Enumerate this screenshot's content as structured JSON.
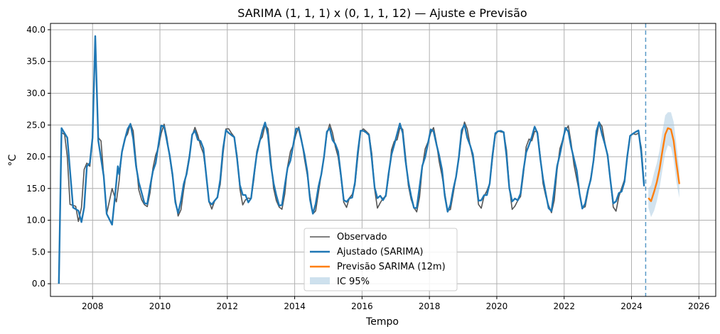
{
  "chart_data": {
    "type": "line",
    "title": "SARIMA (1, 1, 1) x (0, 1, 1, 12) — Ajuste e Previsão",
    "xlabel": "Tempo",
    "ylabel": "°C",
    "xlim": [
      2006.75,
      2026.5
    ],
    "ylim": [
      -2.0,
      41.0
    ],
    "x_ticks": [
      2008,
      2010,
      2012,
      2014,
      2016,
      2018,
      2020,
      2022,
      2024,
      2026
    ],
    "x_tick_labels": [
      "2008",
      "2010",
      "2012",
      "2014",
      "2016",
      "2018",
      "2020",
      "2022",
      "2024",
      "2026"
    ],
    "y_ticks": [
      0,
      5,
      10,
      15,
      20,
      25,
      30,
      35,
      40
    ],
    "y_tick_labels": [
      "0.0",
      "5.0",
      "10.0",
      "15.0",
      "20.0",
      "25.0",
      "30.0",
      "35.0",
      "40.0"
    ],
    "grid": true,
    "legend": "lower-center",
    "forecast_start": 2024.42,
    "history_start": 2007.08,
    "history_end": 2024.42,
    "monthly_pattern_observed": [
      24.0,
      24.3,
      23.0,
      20.0,
      16.0,
      13.0,
      12.0,
      12.5,
      14.0,
      17.0,
      20.5,
      23.0
    ],
    "monthly_pattern_fitted": [
      24.2,
      24.0,
      22.8,
      20.0,
      16.5,
      13.5,
      12.5,
      12.8,
      14.5,
      17.2,
      20.2,
      23.0
    ],
    "observed_special": [
      {
        "x": 2007.08,
        "y": 23.8
      },
      {
        "x": 2007.17,
        "y": 23.5
      },
      {
        "x": 2007.25,
        "y": 20.0
      },
      {
        "x": 2007.33,
        "y": 12.5
      },
      {
        "x": 2007.5,
        "y": 12.2
      },
      {
        "x": 2007.58,
        "y": 9.8
      },
      {
        "x": 2007.67,
        "y": 12.0
      },
      {
        "x": 2007.75,
        "y": 18.0
      },
      {
        "x": 2007.83,
        "y": 19.0
      },
      {
        "x": 2007.92,
        "y": 18.5
      },
      {
        "x": 2008.0,
        "y": 23.0
      },
      {
        "x": 2008.08,
        "y": 38.0
      },
      {
        "x": 2008.17,
        "y": 23.0
      },
      {
        "x": 2008.25,
        "y": 22.5
      },
      {
        "x": 2008.42,
        "y": 11.0
      },
      {
        "x": 2008.58,
        "y": 15.0
      },
      {
        "x": 2008.67,
        "y": 13.5
      }
    ],
    "fitted_special": [
      {
        "x": 2007.0,
        "y": 0.0
      },
      {
        "x": 2007.08,
        "y": 24.5
      },
      {
        "x": 2007.25,
        "y": 23.0
      },
      {
        "x": 2007.42,
        "y": 12.0
      },
      {
        "x": 2007.58,
        "y": 11.5
      },
      {
        "x": 2007.67,
        "y": 9.7
      },
      {
        "x": 2007.75,
        "y": 12.0
      },
      {
        "x": 2007.83,
        "y": 18.5
      },
      {
        "x": 2007.92,
        "y": 19.0
      },
      {
        "x": 2008.0,
        "y": 23.0
      },
      {
        "x": 2008.08,
        "y": 39.0
      },
      {
        "x": 2008.17,
        "y": 22.5
      },
      {
        "x": 2008.33,
        "y": 17.0
      },
      {
        "x": 2008.42,
        "y": 11.0
      },
      {
        "x": 2008.58,
        "y": 9.3
      },
      {
        "x": 2008.67,
        "y": 14.0
      },
      {
        "x": 2008.75,
        "y": 18.5
      }
    ],
    "forecast": {
      "x": [
        2024.5,
        2024.58,
        2024.67,
        2024.75,
        2024.83,
        2024.92,
        2025.0,
        2025.08,
        2025.17,
        2025.25,
        2025.33,
        2025.42
      ],
      "y": [
        13.5,
        13.0,
        14.5,
        16.0,
        18.0,
        21.0,
        23.5,
        24.5,
        24.3,
        22.5,
        19.0,
        15.7
      ],
      "lower": [
        12.0,
        10.5,
        11.5,
        13.0,
        15.0,
        18.0,
        20.5,
        21.8,
        21.5,
        19.5,
        16.0,
        13.5
      ],
      "upper": [
        15.0,
        15.5,
        17.5,
        19.0,
        21.0,
        24.0,
        26.5,
        27.0,
        27.0,
        25.5,
        22.0,
        18.0
      ]
    },
    "series": [
      {
        "name": "Observado",
        "color": "#555555"
      },
      {
        "name": "Ajustado (SARIMA)",
        "color": "#1f77b4"
      },
      {
        "name": "Previsão SARIMA (12m)",
        "color": "#ff7f0e"
      },
      {
        "name": "IC 95%",
        "color": "#a6c8e0"
      }
    ]
  }
}
